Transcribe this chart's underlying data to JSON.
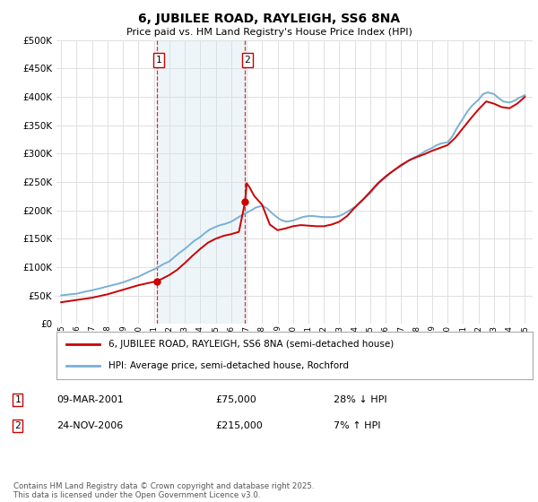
{
  "title": "6, JUBILEE ROAD, RAYLEIGH, SS6 8NA",
  "subtitle": "Price paid vs. HM Land Registry's House Price Index (HPI)",
  "legend_line1": "6, JUBILEE ROAD, RAYLEIGH, SS6 8NA (semi-detached house)",
  "legend_line2": "HPI: Average price, semi-detached house, Rochford",
  "transaction1_label": "1",
  "transaction1_date": "09-MAR-2001",
  "transaction1_price": "£75,000",
  "transaction1_hpi": "28% ↓ HPI",
  "transaction2_label": "2",
  "transaction2_date": "24-NOV-2006",
  "transaction2_price": "£215,000",
  "transaction2_hpi": "7% ↑ HPI",
  "footer": "Contains HM Land Registry data © Crown copyright and database right 2025.\nThis data is licensed under the Open Government Licence v3.0.",
  "line_color_red": "#cc0000",
  "line_color_blue": "#7ab0d4",
  "dashed_color": "#cc0000",
  "background_color": "#ffffff",
  "grid_color": "#e0e0e0",
  "ylim": [
    0,
    500000
  ],
  "yticks": [
    0,
    50000,
    100000,
    150000,
    200000,
    250000,
    300000,
    350000,
    400000,
    450000,
    500000
  ],
  "hpi_x": [
    1995.0,
    1995.3,
    1995.6,
    1996.0,
    1996.3,
    1996.6,
    1997.0,
    1997.3,
    1997.6,
    1998.0,
    1998.3,
    1998.6,
    1999.0,
    1999.3,
    1999.6,
    2000.0,
    2000.3,
    2000.6,
    2001.0,
    2001.3,
    2001.6,
    2002.0,
    2002.3,
    2002.6,
    2003.0,
    2003.3,
    2003.6,
    2004.0,
    2004.3,
    2004.6,
    2005.0,
    2005.3,
    2005.6,
    2006.0,
    2006.3,
    2006.6,
    2007.0,
    2007.3,
    2007.6,
    2008.0,
    2008.3,
    2008.6,
    2009.0,
    2009.3,
    2009.6,
    2010.0,
    2010.3,
    2010.6,
    2011.0,
    2011.3,
    2011.6,
    2012.0,
    2012.3,
    2012.6,
    2013.0,
    2013.3,
    2013.6,
    2014.0,
    2014.3,
    2014.6,
    2015.0,
    2015.3,
    2015.6,
    2016.0,
    2016.3,
    2016.6,
    2017.0,
    2017.3,
    2017.6,
    2018.0,
    2018.3,
    2018.6,
    2019.0,
    2019.3,
    2019.6,
    2020.0,
    2020.3,
    2020.6,
    2021.0,
    2021.3,
    2021.6,
    2022.0,
    2022.3,
    2022.6,
    2023.0,
    2023.3,
    2023.6,
    2024.0,
    2024.3,
    2024.6,
    2025.0
  ],
  "hpi_y": [
    50000,
    51000,
    52000,
    53000,
    55000,
    57000,
    59000,
    61000,
    63000,
    66000,
    68000,
    70000,
    73000,
    76000,
    79000,
    83000,
    87000,
    91000,
    96000,
    100000,
    105000,
    110000,
    117000,
    124000,
    132000,
    139000,
    146000,
    153000,
    160000,
    166000,
    171000,
    174000,
    176000,
    180000,
    185000,
    190000,
    196000,
    200000,
    205000,
    208000,
    204000,
    196000,
    187000,
    182000,
    180000,
    182000,
    185000,
    188000,
    190000,
    190000,
    189000,
    188000,
    188000,
    188000,
    190000,
    194000,
    199000,
    206000,
    214000,
    221000,
    230000,
    240000,
    249000,
    258000,
    266000,
    272000,
    278000,
    284000,
    290000,
    295000,
    300000,
    305000,
    310000,
    315000,
    318000,
    320000,
    330000,
    345000,
    362000,
    375000,
    385000,
    395000,
    405000,
    408000,
    405000,
    398000,
    392000,
    390000,
    393000,
    398000,
    403000
  ],
  "price_x": [
    1995.0,
    1995.5,
    1996.0,
    1996.5,
    1997.0,
    1997.5,
    1998.0,
    1998.5,
    1999.0,
    1999.5,
    2000.0,
    2000.5,
    2001.18,
    2001.5,
    2002.0,
    2002.5,
    2003.0,
    2003.5,
    2004.0,
    2004.5,
    2005.0,
    2005.5,
    2006.0,
    2006.5,
    2006.9,
    2007.0,
    2007.2,
    2007.5,
    2008.0,
    2008.5,
    2009.0,
    2009.5,
    2010.0,
    2010.5,
    2011.0,
    2011.5,
    2012.0,
    2012.5,
    2013.0,
    2013.5,
    2014.0,
    2014.5,
    2015.0,
    2015.5,
    2016.0,
    2016.5,
    2017.0,
    2017.5,
    2018.0,
    2018.5,
    2019.0,
    2019.5,
    2020.0,
    2020.5,
    2021.0,
    2021.5,
    2022.0,
    2022.5,
    2023.0,
    2023.5,
    2024.0,
    2024.5,
    2025.0
  ],
  "price_y": [
    38000,
    40000,
    42000,
    44000,
    46000,
    49000,
    52000,
    56000,
    60000,
    64000,
    68000,
    71000,
    75000,
    79000,
    86000,
    95000,
    107000,
    120000,
    132000,
    143000,
    150000,
    155000,
    158000,
    162000,
    215000,
    248000,
    240000,
    225000,
    210000,
    175000,
    165000,
    168000,
    172000,
    174000,
    173000,
    172000,
    172000,
    175000,
    180000,
    190000,
    205000,
    218000,
    233000,
    248000,
    260000,
    270000,
    280000,
    288000,
    294000,
    299000,
    305000,
    310000,
    315000,
    328000,
    345000,
    362000,
    378000,
    392000,
    388000,
    382000,
    380000,
    388000,
    400000
  ],
  "trans1_x": 2001.18,
  "trans2_x": 2006.9,
  "trans1_y": 75000,
  "trans2_y": 215000,
  "xlim_start": 1994.7,
  "xlim_end": 2025.5,
  "span_color": "#d0e4f0",
  "span_alpha": 0.35
}
